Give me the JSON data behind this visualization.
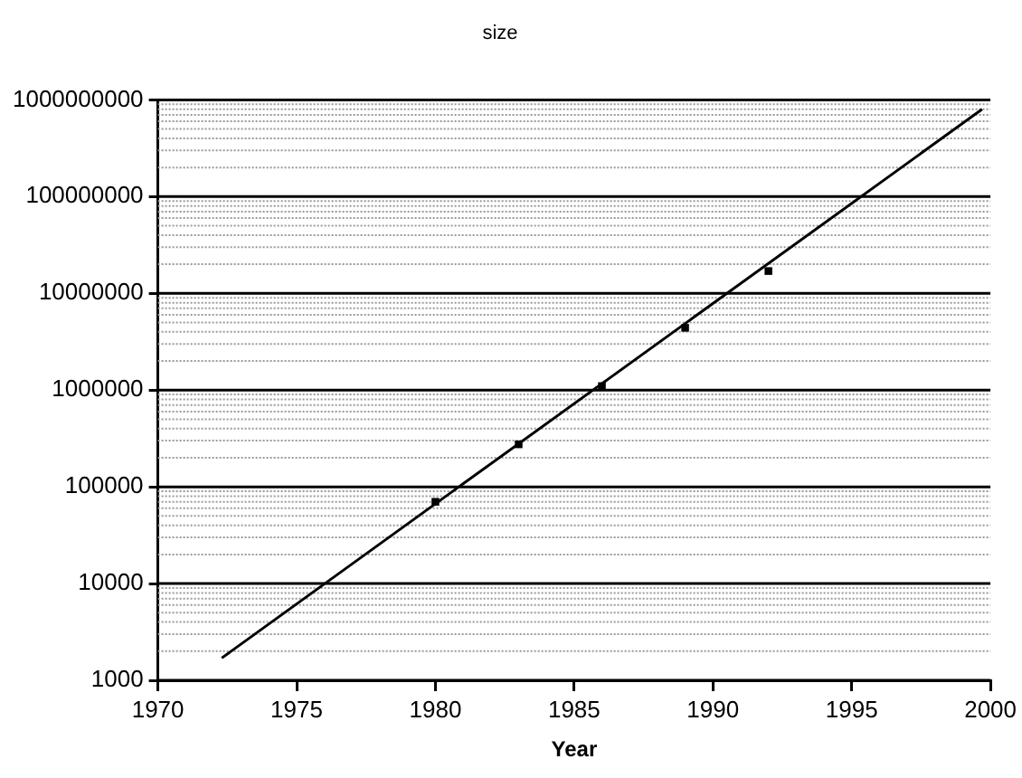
{
  "chart_data": {
    "type": "scatter",
    "title": "size",
    "xlabel": "Year",
    "series": [
      {
        "type": "scatter",
        "color": "#000000",
        "marker": "square",
        "x": [
          1980,
          1983,
          1986,
          1989,
          1992
        ],
        "values": [
          70000,
          275000,
          1100000,
          4400000,
          17000000
        ]
      },
      {
        "type": "line",
        "color": "#000000",
        "marker": "none",
        "x": [
          1972.3,
          1999.7
        ],
        "values": [
          1700,
          800000000
        ]
      }
    ],
    "log": "y",
    "grid": "y",
    "legend": false,
    "xlim": [
      1970,
      2000
    ],
    "xticks": [
      1970,
      1975,
      1980,
      1985,
      1990,
      1995,
      2000
    ],
    "ylim": [
      1000,
      1000000000
    ],
    "yticks": [
      1000,
      {
        "value": 2000,
        "label": null
      },
      {
        "value": 3000,
        "label": null
      },
      {
        "value": 4000,
        "label": null
      },
      {
        "value": 5000,
        "label": null
      },
      {
        "value": 6000,
        "label": null
      },
      {
        "value": 7000,
        "label": null
      },
      {
        "value": 8000,
        "label": null
      },
      {
        "value": 9000,
        "label": null
      },
      10000,
      {
        "value": 20000,
        "label": null
      },
      {
        "value": 30000,
        "label": null
      },
      {
        "value": 40000,
        "label": null
      },
      {
        "value": 50000,
        "label": null
      },
      {
        "value": 60000,
        "label": null
      },
      {
        "value": 70000,
        "label": null
      },
      {
        "value": 80000,
        "label": null
      },
      {
        "value": 90000,
        "label": null
      },
      100000,
      {
        "value": 200000,
        "label": null
      },
      {
        "value": 300000,
        "label": null
      },
      {
        "value": 400000,
        "label": null
      },
      {
        "value": 500000,
        "label": null
      },
      {
        "value": 600000,
        "label": null
      },
      {
        "value": 700000,
        "label": null
      },
      {
        "value": 800000,
        "label": null
      },
      {
        "value": 900000,
        "label": null
      },
      1000000,
      {
        "value": 2000000,
        "label": null
      },
      {
        "value": 3000000,
        "label": null
      },
      {
        "value": 4000000,
        "label": null
      },
      {
        "value": 5000000,
        "label": null
      },
      {
        "value": 6000000,
        "label": null
      },
      {
        "value": 7000000,
        "label": null
      },
      {
        "value": 8000000,
        "label": null
      },
      {
        "value": 9000000,
        "label": null
      },
      10000000,
      {
        "value": 20000000,
        "label": null
      },
      {
        "value": 30000000,
        "label": null
      },
      {
        "value": 40000000,
        "label": null
      },
      {
        "value": 50000000,
        "label": null
      },
      {
        "value": 60000000,
        "label": null
      },
      {
        "value": 70000000,
        "label": null
      },
      {
        "value": 80000000,
        "label": null
      },
      {
        "value": 90000000,
        "label": null
      },
      100000000,
      {
        "value": 200000000,
        "label": null
      },
      {
        "value": 300000000,
        "label": null
      },
      {
        "value": 400000000,
        "label": null
      },
      {
        "value": 500000000,
        "label": null
      },
      {
        "value": 600000000,
        "label": null
      },
      {
        "value": 700000000,
        "label": null
      },
      {
        "value": 800000000,
        "label": null
      },
      {
        "value": 900000000,
        "label": null
      },
      1000000000
    ]
  }
}
